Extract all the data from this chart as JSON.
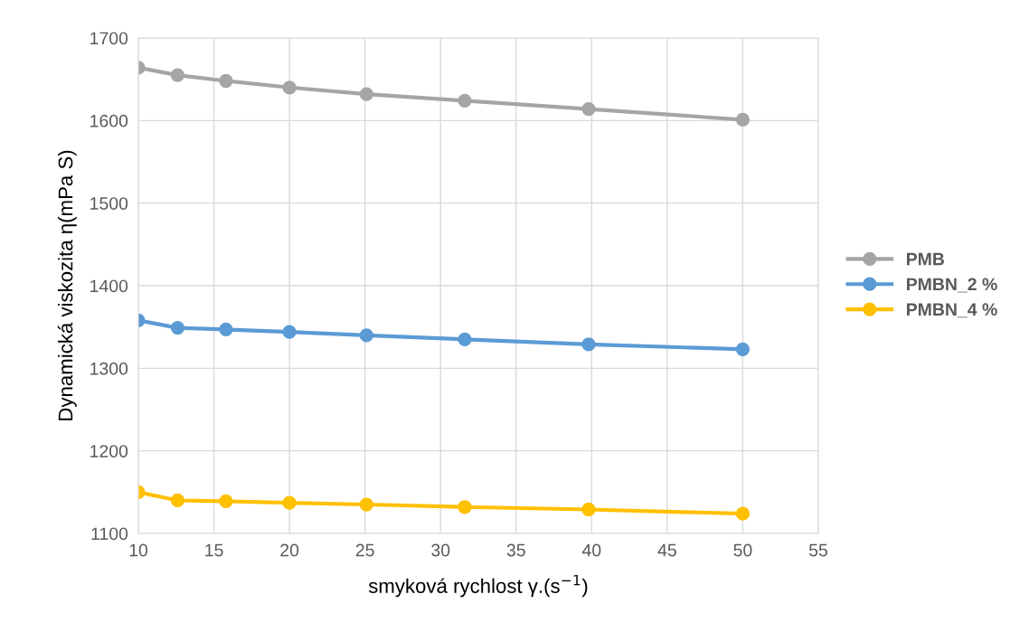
{
  "chart_data": {
    "type": "line",
    "xlabel": "smyková rychlost γ.(s$^{−1}$)",
    "ylabel": "Dynamická viskozita η(mPa S)",
    "x": [
      10,
      12.6,
      15.8,
      20,
      25.1,
      31.6,
      39.8,
      50
    ],
    "series": [
      {
        "name": "PMB",
        "color": "#a5a5a5",
        "values": [
          1664,
          1655,
          1648,
          1640,
          1632,
          1624,
          1614,
          1601
        ]
      },
      {
        "name": "PMBN_2 %",
        "color": "#5b9bd5",
        "values": [
          1358,
          1349,
          1347,
          1344,
          1340,
          1335,
          1329,
          1323
        ]
      },
      {
        "name": "PMBN_4 %",
        "color": "#ffc000",
        "values": [
          1150,
          1140,
          1139,
          1137,
          1135,
          1132,
          1129,
          1124
        ]
      }
    ],
    "xlim": [
      10,
      55
    ],
    "xticks": [
      10,
      15,
      20,
      25,
      30,
      35,
      40,
      45,
      50,
      55
    ],
    "ylim": [
      1100,
      1700
    ],
    "yticks": [
      1100,
      1200,
      1300,
      1400,
      1500,
      1600,
      1700
    ],
    "grid": true,
    "legend": "right",
    "marker": "circle",
    "line_style": "solid"
  }
}
